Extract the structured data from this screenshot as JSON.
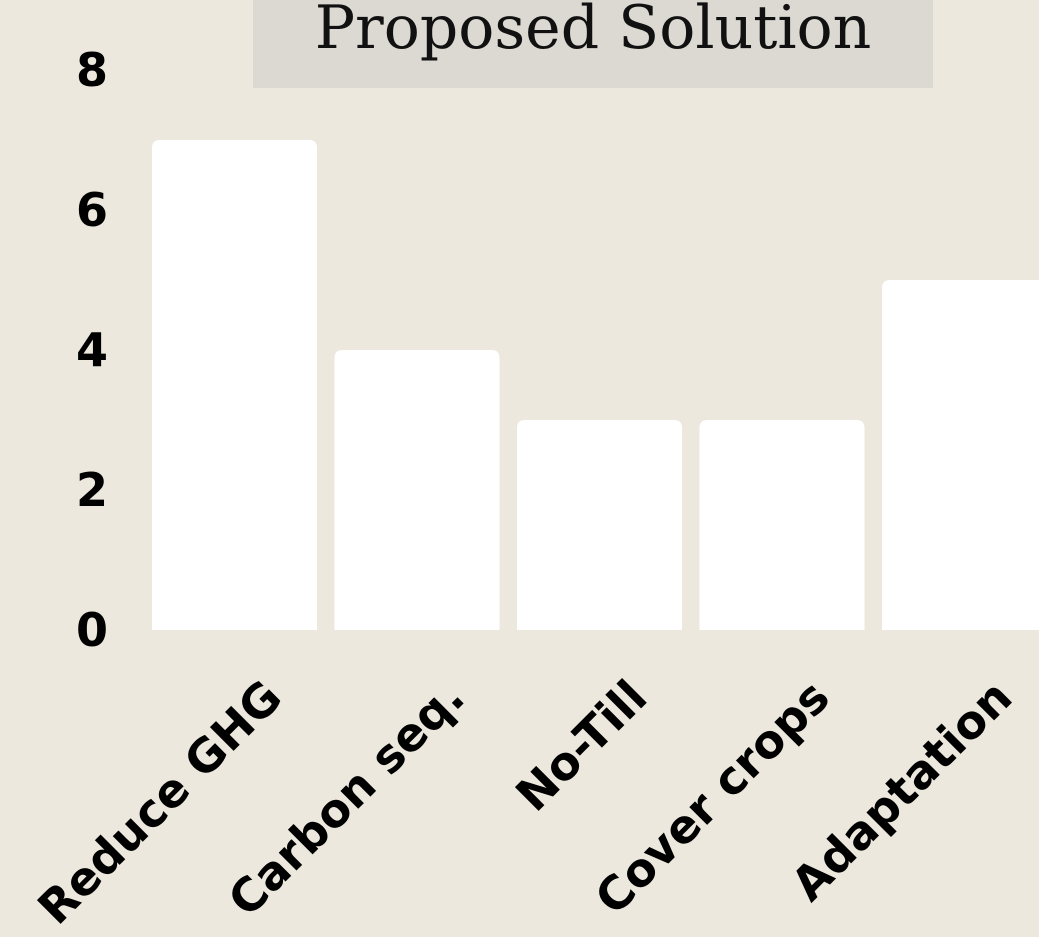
{
  "chart_data": {
    "type": "bar",
    "title": "Proposed Solution",
    "categories": [
      "Reduce GHG",
      "Carbon seq.",
      "No-Till",
      "Cover crops",
      "Adaptation"
    ],
    "values": [
      7,
      4,
      3,
      3,
      5
    ],
    "ylim": [
      0,
      8
    ],
    "yticks": [
      0,
      2,
      4,
      6,
      8
    ],
    "xlabel": "",
    "ylabel": "",
    "grid": false,
    "legend": "none"
  },
  "colors": {
    "background": "#ece8dd",
    "title_box": "#dcd8d2",
    "bar": "#ffffff",
    "text": "#000000"
  }
}
